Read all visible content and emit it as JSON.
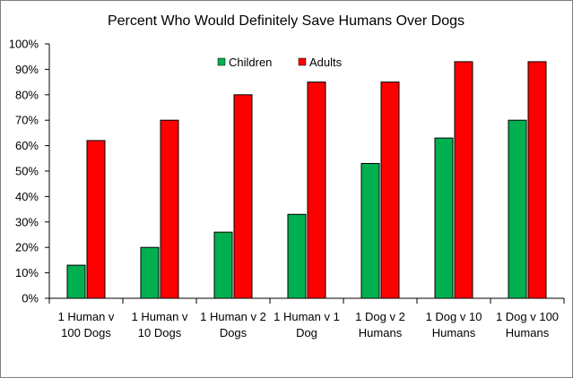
{
  "chart_data": {
    "type": "bar",
    "title": "Percent Who Would Definitely Save Humans Over Dogs",
    "categories": [
      [
        "1 Human v",
        "100 Dogs"
      ],
      [
        "1  Human v",
        "10 Dogs"
      ],
      [
        "1 Human v 2",
        "Dogs"
      ],
      [
        "1 Human v 1",
        "Dog"
      ],
      [
        "1 Dog v 2",
        "Humans"
      ],
      [
        "1 Dog v 10",
        "Humans"
      ],
      [
        "1 Dog v 100",
        "Humans"
      ]
    ],
    "series": [
      {
        "name": "Children",
        "color": "#00b050",
        "values": [
          13,
          20,
          26,
          33,
          53,
          63,
          70
        ]
      },
      {
        "name": "Adults",
        "color": "#ff0000",
        "values": [
          62,
          70,
          80,
          85,
          85,
          93,
          93
        ]
      }
    ],
    "ylim": [
      0,
      100
    ],
    "ytick_labels": [
      "0%",
      "10%",
      "20%",
      "30%",
      "40%",
      "50%",
      "60%",
      "70%",
      "80%",
      "90%",
      "100%"
    ],
    "xlabel": "",
    "ylabel": "",
    "legend_position": "top-center",
    "grid": false
  }
}
